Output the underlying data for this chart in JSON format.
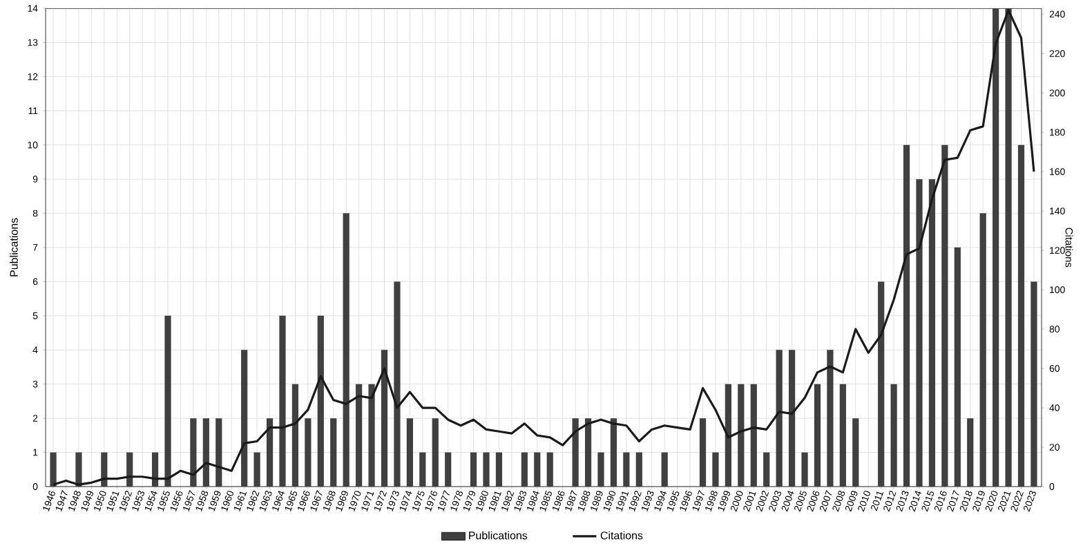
{
  "chart_data": {
    "type": "bar",
    "xlabel": null,
    "ylabel": "Publications",
    "y2label": "Citations",
    "categories": [
      "1946",
      "1947",
      "1948",
      "1949",
      "1950",
      "1951",
      "1952",
      "1953",
      "1954",
      "1955",
      "1956",
      "1957",
      "1958",
      "1959",
      "1960",
      "1961",
      "1962",
      "1963",
      "1964",
      "1965",
      "1966",
      "1967",
      "1968",
      "1969",
      "1970",
      "1971",
      "1972",
      "1973",
      "1974",
      "1975",
      "1976",
      "1977",
      "1978",
      "1979",
      "1980",
      "1981",
      "1982",
      "1983",
      "1984",
      "1985",
      "1986",
      "1987",
      "1988",
      "1989",
      "1990",
      "1991",
      "1992",
      "1993",
      "1994",
      "1995",
      "1996",
      "1997",
      "1998",
      "1999",
      "2000",
      "2001",
      "2002",
      "2003",
      "2004",
      "2005",
      "2006",
      "2007",
      "2008",
      "2009",
      "2010",
      "2011",
      "2012",
      "2013",
      "2014",
      "2015",
      "2016",
      "2017",
      "2018",
      "2019",
      "2020",
      "2021",
      "2022",
      "2023"
    ],
    "series": [
      {
        "name": "Publications",
        "color": "#404040",
        "values": [
          1,
          0,
          1,
          0,
          1,
          0,
          1,
          0,
          1,
          5,
          0,
          2,
          2,
          2,
          0,
          4,
          1,
          2,
          5,
          3,
          2,
          5,
          2,
          8,
          3,
          3,
          4,
          6,
          2,
          1,
          2,
          1,
          0,
          1,
          1,
          1,
          0,
          1,
          1,
          1,
          0,
          2,
          2,
          1,
          2,
          1,
          1,
          0,
          1,
          0,
          0,
          2,
          1,
          3,
          3,
          3,
          1,
          4,
          4,
          1,
          3,
          4,
          3,
          2,
          0,
          6,
          3,
          10,
          9,
          9,
          10,
          7,
          2,
          8,
          14,
          14,
          10,
          6
        ]
      },
      {
        "name": "Citations",
        "type": "line",
        "axis": "y2",
        "color": "#1a1a1a",
        "values": [
          1,
          3,
          1,
          2,
          4,
          4,
          5,
          5,
          4,
          4,
          8,
          6,
          12,
          10,
          8,
          22,
          23,
          30,
          30,
          32,
          39,
          56,
          44,
          42,
          46,
          45,
          60,
          40,
          48,
          40,
          40,
          34,
          31,
          34,
          29,
          28,
          27,
          32,
          26,
          25,
          21,
          28,
          32,
          34,
          32,
          31,
          23,
          29,
          31,
          30,
          29,
          50,
          39,
          25,
          28,
          30,
          29,
          38,
          37,
          45,
          58,
          61,
          58,
          80,
          68,
          77,
          95,
          118,
          121,
          146,
          166,
          167,
          181,
          183,
          225,
          242,
          228,
          160
        ]
      }
    ],
    "ylim": [
      0,
      14
    ],
    "yticks": [
      0,
      1,
      2,
      3,
      4,
      5,
      6,
      7,
      8,
      9,
      10,
      11,
      12,
      13,
      14
    ],
    "y2lim": [
      0,
      243
    ],
    "y2ticks": [
      0,
      20,
      40,
      60,
      80,
      100,
      120,
      140,
      160,
      180,
      200,
      220,
      240
    ],
    "grid": true,
    "legend": "bottom",
    "marker": "none",
    "line_style": "solid"
  }
}
